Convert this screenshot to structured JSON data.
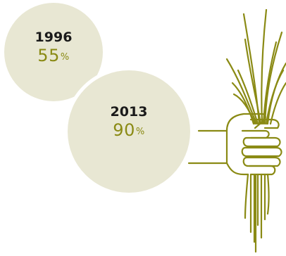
{
  "colors": {
    "circle_fill": "#e8e7d3",
    "accent": "#8a8a14",
    "year_text": "#1a1a1a",
    "background": "#ffffff"
  },
  "stats": [
    {
      "year": "1996",
      "value": "55",
      "unit": "%"
    },
    {
      "year": "2013",
      "value": "90",
      "unit": "%"
    }
  ],
  "illustration": {
    "icon": "hand-holding-grain-stalks-icon"
  }
}
